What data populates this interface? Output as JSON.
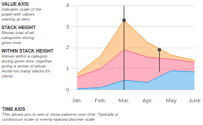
{
  "chart_data": {
    "type": "area",
    "stacked": true,
    "x": [
      0,
      1,
      2,
      3,
      4,
      5
    ],
    "xlim": [
      0,
      5
    ],
    "xticks": [
      {
        "value": 0,
        "label": "Jan."
      },
      {
        "value": 1,
        "label": "Feb."
      },
      {
        "value": 2,
        "label": "Mar."
      },
      {
        "value": 3,
        "label": "Apr."
      },
      {
        "value": 4,
        "label": "May"
      },
      {
        "value": 5,
        "label": "June"
      }
    ],
    "series": [
      {
        "values": [
          0.05,
          0.1,
          0.45,
          0.35,
          0.9,
          0.85
        ]
      },
      {
        "values": [
          0.55,
          0.9,
          1.45,
          1.2,
          0.55,
          0.45
        ]
      },
      {
        "values": [
          0.15,
          0.6,
          1.4,
          0.7,
          0.2,
          0.1
        ]
      }
    ],
    "ylim": [
      0,
      4
    ],
    "yticks": [
      0,
      1,
      2,
      3,
      4
    ],
    "grid": true,
    "vlines": [
      {
        "x": 2
      },
      {
        "x": 3.5,
        "from": 0.85,
        "to": 1.9
      }
    ],
    "markers": [
      {
        "x": 2,
        "y": 3.3
      },
      {
        "x": 3.5,
        "y": 1.9
      }
    ],
    "annotations": [
      {
        "title": "VALUE AXIS",
        "text": "Indicates scale of the\ngraph with values\nstarting at zero."
      },
      {
        "title": "TIME AXIS",
        "text": "This allows you to see or show patterns over time. Typically a\ncontinuous scale or evenly-spaced discrete scale."
      },
      {
        "title": "STACK HEIGHT",
        "text": "Shows total of all\ncategories during\ngiven time."
      },
      {
        "title": "WITHIN STACK HEIGHT",
        "text": "Values within a category\nduring given time, together\ngiving a sense of whole.\nAvoid too many stacks for\nclarity."
      }
    ]
  }
}
